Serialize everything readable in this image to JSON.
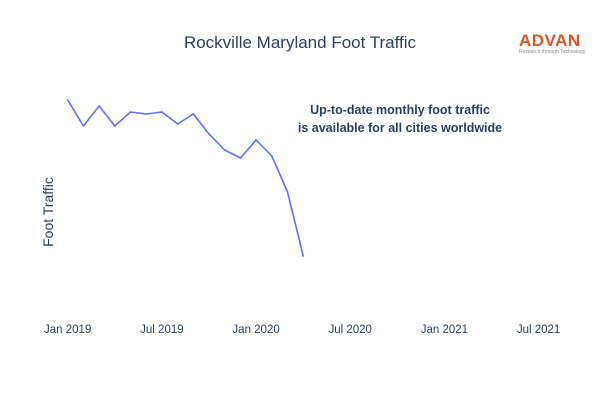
{
  "title": "Rockville Maryland Foot Traffic",
  "logo": {
    "name": "ADVAN",
    "tagline": "Research through Technology"
  },
  "annotation": {
    "line1": "Up-to-date monthly foot traffic",
    "line2": "is available for all cities worldwide"
  },
  "colors": {
    "line": "#636efa",
    "text": "#2a3f5f",
    "logo": "#d9552b"
  },
  "chart_data": {
    "type": "line",
    "title": "Rockville Maryland Foot Traffic",
    "xlabel": "",
    "ylabel": "Foot Traffic",
    "x_ticks": [
      "Jan 2019",
      "Jul 2019",
      "Jan 2020",
      "Jul 2020",
      "Jan 2021",
      "Jul 2021"
    ],
    "y_ticks_shown": false,
    "grid": false,
    "xlim": [
      "2018-12",
      "2021-09"
    ],
    "ylim": [
      0,
      100
    ],
    "series": [
      {
        "x": [
          "2019-01",
          "2019-02",
          "2019-03",
          "2019-04",
          "2019-05",
          "2019-06",
          "2019-07",
          "2019-08",
          "2019-09",
          "2019-10",
          "2019-11",
          "2019-12",
          "2020-01",
          "2020-02",
          "2020-03",
          "2020-04"
        ],
        "values": [
          100,
          87,
          97,
          87,
          94,
          93,
          94,
          88,
          93,
          83,
          75,
          71,
          80,
          72,
          54,
          22
        ]
      }
    ]
  }
}
